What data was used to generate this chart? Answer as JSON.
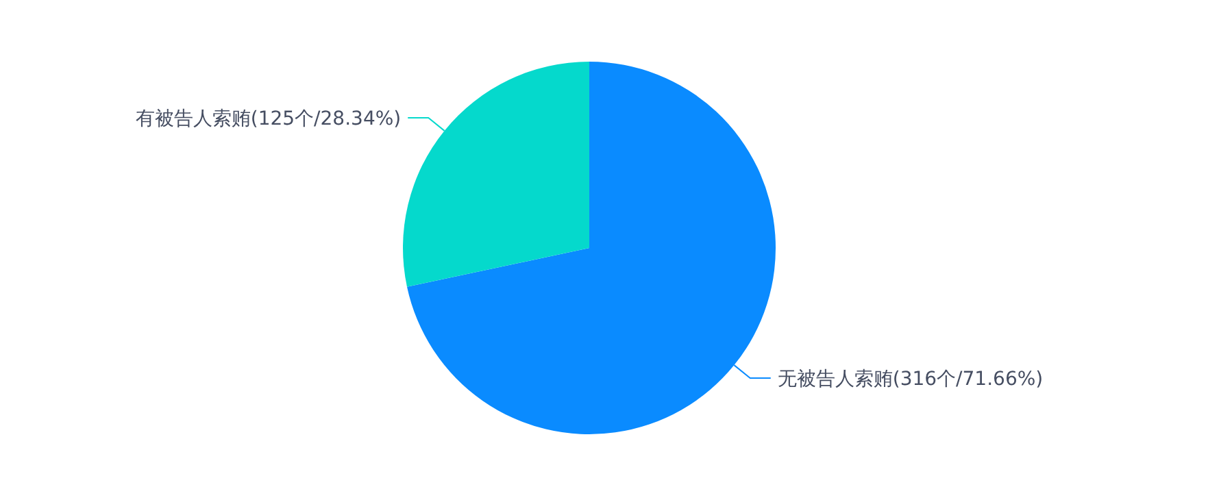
{
  "chart_data": {
    "type": "pie",
    "categories": [
      "无被告人索贿",
      "有被告人索贿"
    ],
    "values": [
      316,
      125
    ],
    "colors": [
      "#0a8bff",
      "#05d9cc"
    ],
    "value_labels": [
      "(316个/71.66%)",
      "(125个/28.34%)"
    ]
  }
}
